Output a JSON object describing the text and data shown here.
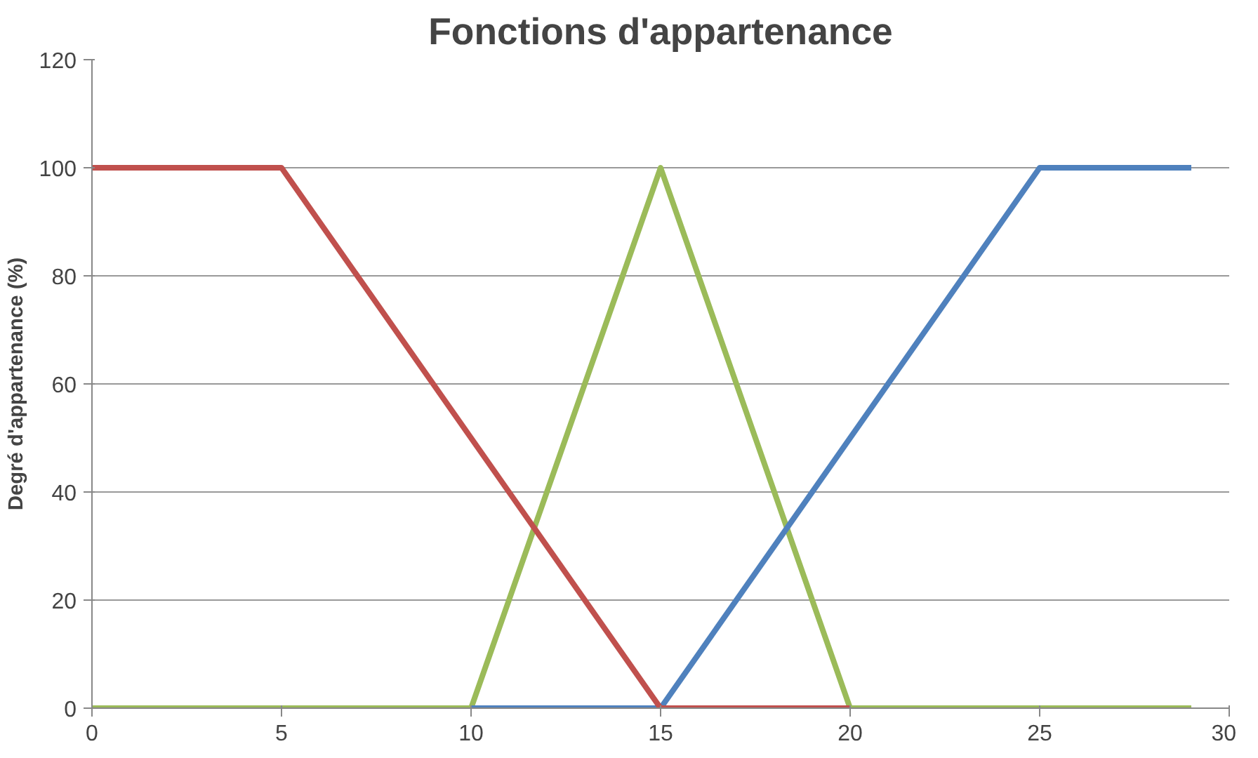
{
  "chart_data": {
    "type": "line",
    "title": "Fonctions d'appartenance",
    "ylabel": "Degré d'appartenance (%)",
    "series": [
      {
        "color": "#9bbb59",
        "x": [
          0,
          10,
          15,
          20,
          29
        ],
        "values": [
          0,
          0,
          100,
          0,
          0
        ]
      },
      {
        "color": "#4f81bd",
        "x": [
          10,
          15,
          25,
          29
        ],
        "values": [
          0,
          0,
          100,
          100
        ]
      },
      {
        "color": "#c0504d",
        "x": [
          0,
          5,
          15,
          20
        ],
        "values": [
          100,
          100,
          0,
          0
        ]
      }
    ],
    "xlim": [
      0,
      30
    ],
    "ylim": [
      0,
      120
    ],
    "xticks": [
      0,
      5,
      10,
      15,
      20,
      25,
      30
    ],
    "yticks": [
      0,
      20,
      40,
      60,
      80,
      100,
      120
    ],
    "grid": "y",
    "marker": "none",
    "line_style": "solid"
  }
}
